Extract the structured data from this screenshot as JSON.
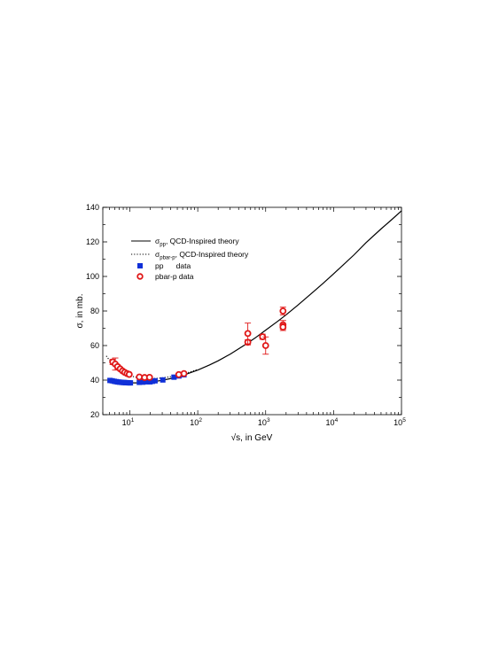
{
  "chart_data": {
    "type": "scatter",
    "x_scale": "log",
    "xlim": [
      4,
      100000
    ],
    "ylim": [
      20,
      140
    ],
    "xlabel": {
      "prefix": "√",
      "main": "s, in GeV"
    },
    "ylabel": {
      "sym": "σ",
      "main": ", in mb."
    },
    "y_ticks": [
      "20",
      "40",
      "60",
      "80",
      "100",
      "120",
      "140"
    ],
    "x_ticks": [
      {
        "value": 10,
        "base": "10",
        "exp": "1"
      },
      {
        "value": 100,
        "base": "10",
        "exp": "2"
      },
      {
        "value": 1000,
        "base": "10",
        "exp": "3"
      },
      {
        "value": 10000,
        "base": "10",
        "exp": "4"
      },
      {
        "value": 100000,
        "base": "10",
        "exp": "5"
      }
    ],
    "grid": false,
    "legend_placement": "top-left",
    "legend": [
      {
        "marker": "solid-line",
        "sym": "σ",
        "sub": "pp",
        "text": ", QCD-Inspired theory"
      },
      {
        "marker": "dotted-line",
        "sym": "σ",
        "sub": "pbar-p",
        "text": ", QCD-Inspired theory"
      },
      {
        "marker": "blue-square",
        "sym": "",
        "sub": "",
        "text": "pp      data"
      },
      {
        "marker": "red-circle",
        "sym": "",
        "sub": "",
        "text": "pbar-p data"
      }
    ],
    "series": [
      {
        "kind": "curve-solid",
        "color": "#000000",
        "x": [
          5,
          6,
          7,
          8,
          10,
          12,
          15,
          20,
          25,
          30,
          40,
          50,
          70,
          100,
          150,
          200,
          300,
          500,
          700,
          1000,
          1500,
          2000,
          3000,
          5000,
          7000,
          10000,
          20000,
          30000,
          50000,
          70000,
          100000
        ],
        "y": [
          40.2,
          39.6,
          39.1,
          38.8,
          38.5,
          38.4,
          38.5,
          38.9,
          39.4,
          39.9,
          40.9,
          41.9,
          43.6,
          45.8,
          48.8,
          51.2,
          55.0,
          60.5,
          64.4,
          68.9,
          74.0,
          77.8,
          83.5,
          91.0,
          96.0,
          101.5,
          112.5,
          119.5,
          127.5,
          132.5,
          138.0
        ]
      },
      {
        "kind": "curve-dotted",
        "color": "#000000",
        "x": [
          4.5,
          5,
          6,
          7,
          8,
          10,
          12,
          15,
          20,
          25,
          30,
          40,
          50,
          70,
          100
        ],
        "y": [
          54.0,
          51.5,
          47.8,
          45.6,
          44.3,
          42.6,
          41.7,
          41.1,
          40.9,
          41.0,
          41.3,
          42.0,
          42.8,
          44.2,
          46.2
        ]
      },
      {
        "name": "pp data",
        "kind": "markers-square",
        "color": "#1030d8",
        "x": [
          5.1,
          5.5,
          5.9,
          6.3,
          6.7,
          7.1,
          7.5,
          7.9,
          8.3,
          8.7,
          9.2,
          9.7,
          10.2,
          13.8,
          15.5,
          18.0,
          19.8,
          21.5,
          23.5,
          30.6,
          44.7,
          52.8,
          62.7
        ],
        "y": [
          39.8,
          39.6,
          39.3,
          39.1,
          38.9,
          38.8,
          38.7,
          38.6,
          38.6,
          38.5,
          38.5,
          38.4,
          38.4,
          38.7,
          38.8,
          39.0,
          39.0,
          39.3,
          39.6,
          40.1,
          41.7,
          42.4,
          43.1
        ]
      },
      {
        "name": "pbar-p data",
        "kind": "markers-circle",
        "color": "#e01818",
        "x": [
          5.6,
          6.1,
          6.6,
          7.2,
          7.8,
          8.4,
          9.1,
          9.8,
          13.8,
          16.5,
          19.5,
          52.6,
          62.7,
          546,
          546,
          900,
          1000,
          1800,
          1800,
          1800
        ],
        "y": [
          50.5,
          49.3,
          47.8,
          46.5,
          45.3,
          44.5,
          43.8,
          43.3,
          41.8,
          41.5,
          41.6,
          43.2,
          43.8,
          61.9,
          67.0,
          65.1,
          60.0,
          72.0,
          70.7,
          80.0
        ],
        "err": [
          1.5,
          3.5,
          1.0,
          0.8,
          0.7,
          0.6,
          0.6,
          0.5,
          0.4,
          0.4,
          0.4,
          0.5,
          0.5,
          1.5,
          6.0,
          1.5,
          5.0,
          2.5,
          2.0,
          2.2
        ]
      }
    ]
  }
}
